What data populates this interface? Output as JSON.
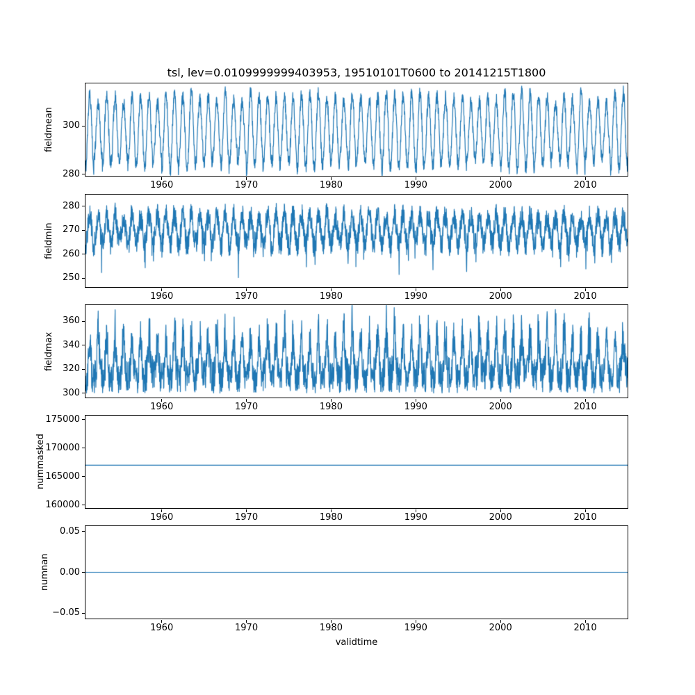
{
  "chart_data": {
    "type": "line",
    "title": "tsl, lev=0.0109999999403953, 19510101T0600 to 20141215T1800",
    "xlabel": "validtime",
    "xlim": [
      1951,
      2015
    ],
    "xticks": [
      1960,
      1970,
      1980,
      1990,
      2000,
      2010
    ],
    "xtick_labels": [
      "1960",
      "1970",
      "1980",
      "1990",
      "2000",
      "2010"
    ],
    "line_color": "#1f77b4",
    "x_description": "6-hourly timesteps from 19510101T0600 to 20141215T1800",
    "grid": false,
    "legend": "none",
    "subplots": [
      {
        "ylabel": "fieldmean",
        "ylim": [
          279.3,
          317.8
        ],
        "yticks": [
          280,
          300
        ],
        "ytick_labels": [
          "280",
          "300"
        ],
        "series": {
          "name": "fieldmean",
          "kind": "seasonal",
          "mean": 298,
          "seasonal_amplitude": 14,
          "noise": 3,
          "approx_min": 281,
          "approx_max": 316,
          "period_years": 1,
          "samples_per_year": 40
        }
      },
      {
        "ylabel": "fieldmin",
        "ylim": [
          246.3,
          284.8
        ],
        "yticks": [
          250,
          260,
          270,
          280
        ],
        "ytick_labels": [
          "250",
          "260",
          "270",
          "280"
        ],
        "series": {
          "name": "fieldmin",
          "kind": "seasonal",
          "mean": 270,
          "seasonal_amplitude": 6,
          "noise": 5,
          "spike_prob": 0.05,
          "spike_depth": 12,
          "approx_min": 248,
          "approx_max": 283,
          "period_years": 1,
          "samples_per_year": 40
        }
      },
      {
        "ylabel": "fieldmax",
        "ylim": [
          296.5,
          373.5
        ],
        "yticks": [
          300,
          320,
          340,
          360
        ],
        "ytick_labels": [
          "300",
          "320",
          "340",
          "360"
        ],
        "series": {
          "name": "fieldmax",
          "kind": "seasonal_floor",
          "floor": 300,
          "band": 28,
          "peak": 48,
          "approx_min": 300,
          "approx_max": 370,
          "period_years": 1,
          "samples_per_year": 40
        }
      },
      {
        "ylabel": "nummasked",
        "ylim": [
          159500,
          175700
        ],
        "yticks": [
          160000,
          165000,
          170000,
          175000
        ],
        "ytick_labels": [
          "160000",
          "165000",
          "170000",
          "175000"
        ],
        "series": {
          "name": "nummasked",
          "kind": "constant",
          "value": 167000
        }
      },
      {
        "ylabel": "numnan",
        "ylim": [
          -0.0565,
          0.0565
        ],
        "yticks": [
          -0.05,
          0.0,
          0.05
        ],
        "ytick_labels": [
          "−0.05",
          "0.00",
          "0.05"
        ],
        "series": {
          "name": "numnan",
          "kind": "constant",
          "value": 0
        }
      }
    ]
  }
}
